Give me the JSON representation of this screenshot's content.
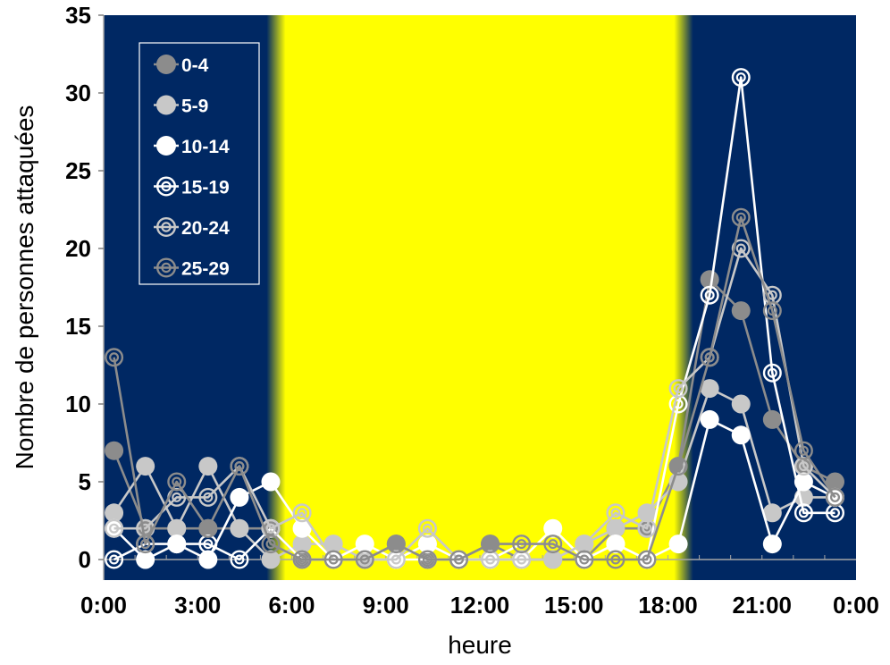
{
  "chart_data": {
    "type": "line",
    "xlabel": "heure",
    "ylabel": "Nombre de personnes attaquées",
    "ylim": [
      0,
      35
    ],
    "yticks": [
      "0",
      "5",
      "10",
      "15",
      "20",
      "25",
      "30",
      "35"
    ],
    "xlim": [
      0,
      24
    ],
    "xticks": [
      "0:00",
      "3:00",
      "6:00",
      "9:00",
      "12:00",
      "15:00",
      "18:00",
      "21:00",
      "0:00"
    ],
    "x": [
      0.33,
      1.33,
      2.33,
      3.33,
      4.33,
      5.33,
      6.33,
      7.33,
      8.33,
      9.33,
      10.33,
      11.33,
      12.33,
      13.33,
      14.33,
      15.33,
      16.33,
      17.33,
      18.33,
      19.33,
      20.33,
      21.33,
      22.33,
      23.33
    ],
    "day_band": {
      "start": 5.5,
      "end": 18.5,
      "color": "#ffff00"
    },
    "night_color": "#002863",
    "grid": false,
    "legend_position": "top-left",
    "series": [
      {
        "name": "0-4",
        "marker": "filled",
        "color": "#8c8c8c",
        "values": [
          7,
          2,
          2,
          2,
          2,
          2,
          0,
          0,
          0,
          1,
          0,
          0,
          1,
          0,
          0,
          0,
          2,
          2,
          6,
          18,
          16,
          9,
          6,
          5
        ]
      },
      {
        "name": "5-9",
        "marker": "filled",
        "color": "#c8c8c8",
        "values": [
          3,
          6,
          2,
          6,
          2,
          0,
          1,
          1,
          0,
          0,
          1,
          0,
          0,
          0,
          0,
          1,
          2,
          3,
          5,
          11,
          10,
          3,
          4,
          4
        ]
      },
      {
        "name": "10-14",
        "marker": "filled",
        "color": "#ffffff",
        "values": [
          2,
          0,
          1,
          0,
          4,
          5,
          2,
          0,
          1,
          0,
          1,
          0,
          0,
          0,
          2,
          0,
          1,
          0,
          1,
          9,
          8,
          1,
          5,
          4
        ]
      },
      {
        "name": "15-19",
        "marker": "ringed",
        "color": "#ffffff",
        "values": [
          0,
          1,
          1,
          1,
          0,
          2,
          0,
          0,
          0,
          0,
          0,
          0,
          0,
          1,
          1,
          0,
          1,
          0,
          10,
          17,
          31,
          12,
          3,
          3
        ]
      },
      {
        "name": "20-24",
        "marker": "ringed",
        "color": "#c8c8c8",
        "values": [
          2,
          2,
          4,
          4,
          6,
          2,
          3,
          0,
          0,
          0,
          2,
          0,
          0,
          0,
          0,
          1,
          3,
          2,
          11,
          13,
          20,
          17,
          6,
          4
        ]
      },
      {
        "name": "25-29",
        "marker": "ringed",
        "color": "#8c8c8c",
        "values": [
          13,
          1,
          5,
          2,
          6,
          1,
          0,
          0,
          0,
          1,
          0,
          0,
          1,
          1,
          1,
          0,
          0,
          0,
          6,
          13,
          22,
          16,
          7,
          4
        ]
      }
    ]
  }
}
